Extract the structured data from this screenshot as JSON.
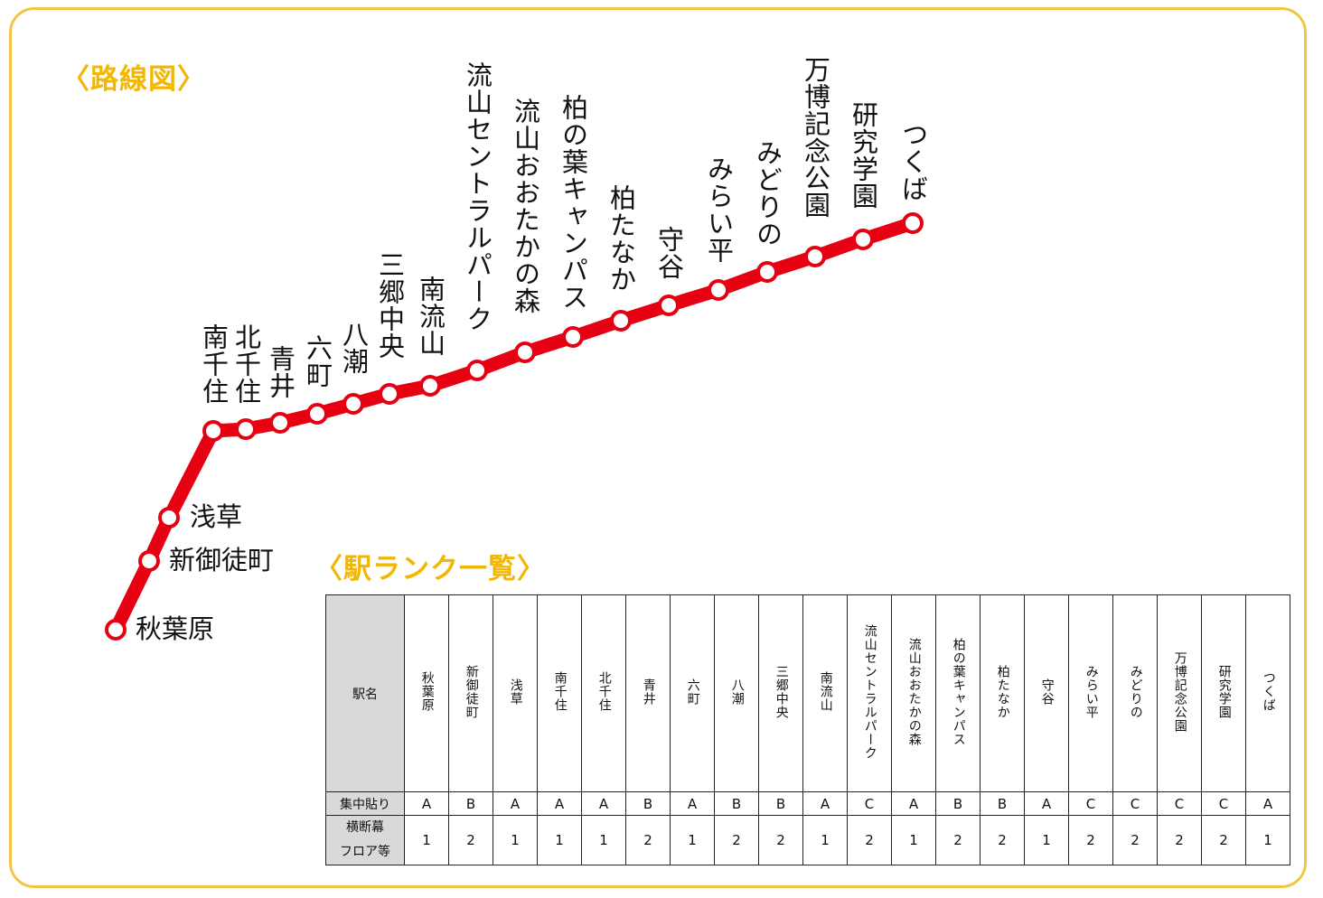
{
  "colors": {
    "line": "#e60012",
    "heading": "#f2b705",
    "frame": "#f4c542",
    "header_fill": "#d9d9d9"
  },
  "headings": {
    "route_map": "〈路線図〉",
    "rank_list": "〈駅ランク一覧〉"
  },
  "stations": [
    {
      "name": "秋葉原"
    },
    {
      "name": "新御徒町"
    },
    {
      "name": "浅草"
    },
    {
      "name": "南千住"
    },
    {
      "name": "北千住"
    },
    {
      "name": "青井"
    },
    {
      "name": "六町"
    },
    {
      "name": "八潮"
    },
    {
      "name": "三郷中央"
    },
    {
      "name": "南流山"
    },
    {
      "name": "流山セントラルパーク"
    },
    {
      "name": "流山おおたかの森"
    },
    {
      "name": "柏の葉キャンパス"
    },
    {
      "name": "柏たなか"
    },
    {
      "name": "守谷"
    },
    {
      "name": "みらい平"
    },
    {
      "name": "みどりの"
    },
    {
      "name": "万博記念公園"
    },
    {
      "name": "研究学園"
    },
    {
      "name": "つくば"
    }
  ],
  "table": {
    "row_labels": {
      "name": "駅名",
      "concentrated": "集中貼り",
      "banner_line1": "横断幕",
      "banner_line2": "フロア等"
    },
    "concentrated": [
      "A",
      "B",
      "A",
      "A",
      "A",
      "B",
      "A",
      "B",
      "B",
      "A",
      "C",
      "A",
      "B",
      "B",
      "A",
      "C",
      "C",
      "C",
      "C",
      "A"
    ],
    "banner": [
      "1",
      "2",
      "1",
      "1",
      "1",
      "2",
      "1",
      "2",
      "2",
      "1",
      "2",
      "1",
      "2",
      "2",
      "1",
      "2",
      "2",
      "2",
      "2",
      "1"
    ]
  }
}
